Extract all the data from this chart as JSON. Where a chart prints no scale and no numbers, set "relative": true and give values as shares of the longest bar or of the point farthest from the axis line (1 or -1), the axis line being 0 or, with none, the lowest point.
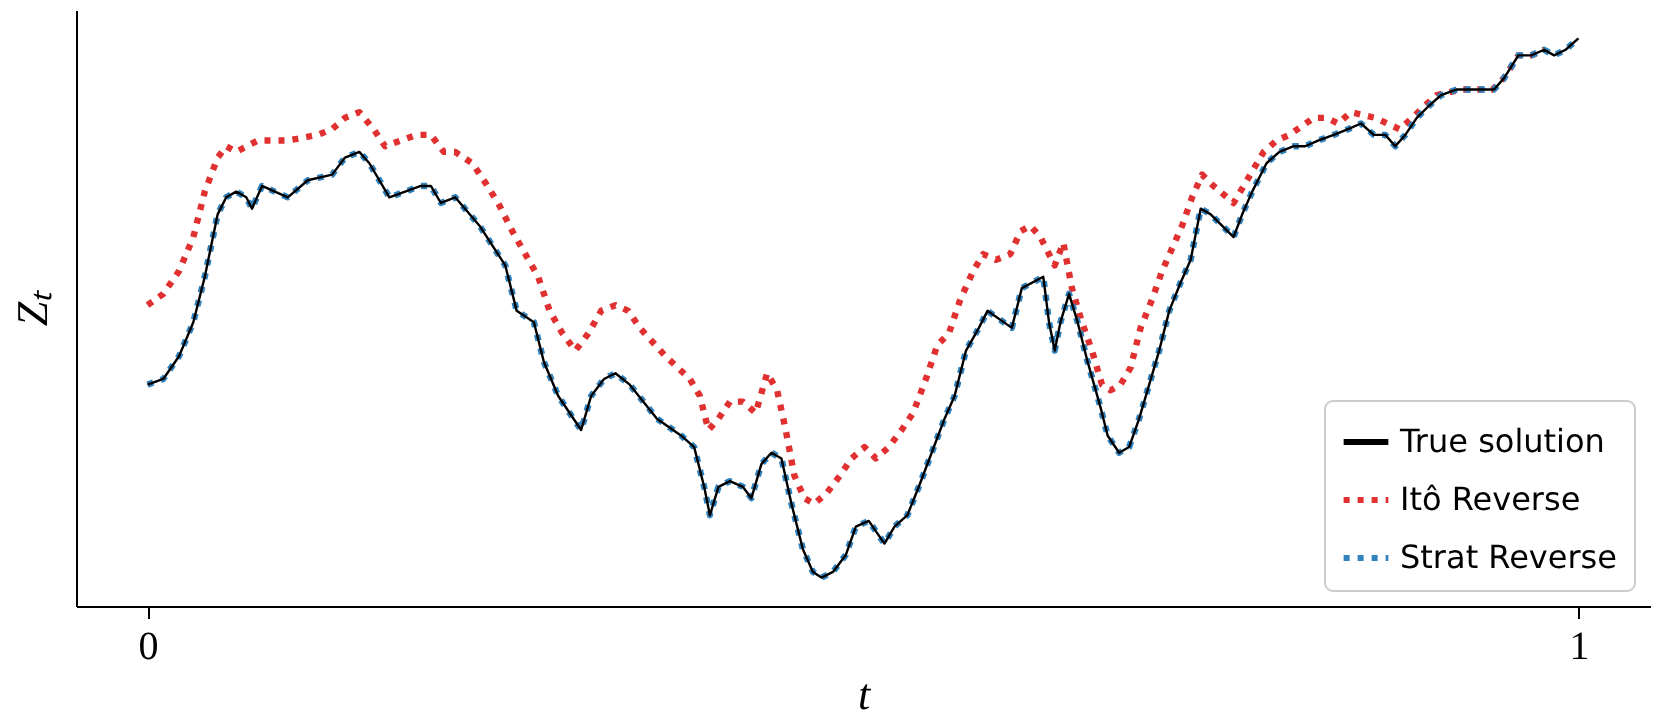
{
  "chart_data": {
    "type": "line",
    "xlabel": "t",
    "ylabel": "Zₜ",
    "xlim": [
      -0.05,
      1.05
    ],
    "xticks": [
      {
        "value": 0,
        "label": "0"
      },
      {
        "value": 1,
        "label": "1"
      }
    ],
    "relative": true,
    "tick_labels": "x",
    "legend": "bottom right",
    "series": [
      {
        "name": "True solution",
        "color": "#000000",
        "line_style": "solid",
        "x": [
          0,
          0.011,
          0.022,
          0.032,
          0.04,
          0.049,
          0.055,
          0.062,
          0.069,
          0.073,
          0.08,
          0.098,
          0.112,
          0.129,
          0.138,
          0.148,
          0.155,
          0.169,
          0.191,
          0.198,
          0.205,
          0.215,
          0.232,
          0.25,
          0.258,
          0.27,
          0.277,
          0.287,
          0.303,
          0.31,
          0.319,
          0.327,
          0.337,
          0.356,
          0.373,
          0.382,
          0.389,
          0.393,
          0.399,
          0.407,
          0.416,
          0.422,
          0.429,
          0.436,
          0.443,
          0.45,
          0.458,
          0.465,
          0.471,
          0.479,
          0.488,
          0.495,
          0.504,
          0.515,
          0.522,
          0.531,
          0.539,
          0.548,
          0.557,
          0.564,
          0.572,
          0.581,
          0.587,
          0.604,
          0.611,
          0.626,
          0.63,
          0.634,
          0.638,
          0.644,
          0.65,
          0.657,
          0.666,
          0.671,
          0.679,
          0.686,
          0.693,
          0.7,
          0.707,
          0.714,
          0.722,
          0.729,
          0.736,
          0.743,
          0.759,
          0.765,
          0.772,
          0.782,
          0.791,
          0.801,
          0.809,
          0.818,
          0.829,
          0.839,
          0.848,
          0.857,
          0.865,
          0.872,
          0.879,
          0.887,
          0.895,
          0.904,
          0.915,
          0.941,
          0.948,
          0.958,
          0.967,
          0.976,
          0.983,
          0.991,
          1
        ],
        "values": [
          0.39,
          0.4,
          0.44,
          0.5,
          0.58,
          0.69,
          0.72,
          0.73,
          0.72,
          0.7,
          0.74,
          0.72,
          0.75,
          0.76,
          0.79,
          0.8,
          0.78,
          0.72,
          0.74,
          0.74,
          0.71,
          0.72,
          0.67,
          0.6,
          0.52,
          0.5,
          0.43,
          0.37,
          0.31,
          0.37,
          0.4,
          0.41,
          0.39,
          0.33,
          0.3,
          0.28,
          0.21,
          0.16,
          0.21,
          0.22,
          0.21,
          0.19,
          0.25,
          0.27,
          0.26,
          0.18,
          0.1,
          0.06,
          0.05,
          0.06,
          0.09,
          0.14,
          0.15,
          0.11,
          0.14,
          0.16,
          0.21,
          0.27,
          0.33,
          0.37,
          0.45,
          0.49,
          0.52,
          0.49,
          0.56,
          0.58,
          0.5,
          0.45,
          0.5,
          0.55,
          0.5,
          0.43,
          0.35,
          0.3,
          0.27,
          0.28,
          0.33,
          0.39,
          0.45,
          0.52,
          0.57,
          0.61,
          0.7,
          0.69,
          0.65,
          0.69,
          0.73,
          0.78,
          0.8,
          0.81,
          0.81,
          0.82,
          0.83,
          0.84,
          0.85,
          0.83,
          0.83,
          0.81,
          0.83,
          0.86,
          0.88,
          0.9,
          0.91,
          0.91,
          0.93,
          0.97,
          0.97,
          0.98,
          0.97,
          0.98,
          1.0
        ]
      },
      {
        "name": "Itô Reverse",
        "color": "#e03030",
        "line_style": "dotted",
        "x": [
          0,
          0.011,
          0.022,
          0.032,
          0.04,
          0.049,
          0.055,
          0.062,
          0.077,
          0.098,
          0.119,
          0.129,
          0.138,
          0.148,
          0.158,
          0.166,
          0.188,
          0.198,
          0.207,
          0.215,
          0.227,
          0.235,
          0.245,
          0.255,
          0.264,
          0.273,
          0.281,
          0.29,
          0.299,
          0.308,
          0.317,
          0.327,
          0.336,
          0.344,
          0.362,
          0.379,
          0.386,
          0.392,
          0.399,
          0.407,
          0.416,
          0.425,
          0.433,
          0.44,
          0.446,
          0.452,
          0.459,
          0.466,
          0.475,
          0.484,
          0.492,
          0.501,
          0.509,
          0.518,
          0.527,
          0.535,
          0.544,
          0.552,
          0.56,
          0.568,
          0.577,
          0.584,
          0.593,
          0.603,
          0.61,
          0.617,
          0.624,
          0.628,
          0.634,
          0.64,
          0.646,
          0.653,
          0.66,
          0.667,
          0.673,
          0.68,
          0.687,
          0.694,
          0.702,
          0.709,
          0.716,
          0.723,
          0.73,
          0.737,
          0.745,
          0.759,
          0.766,
          0.773,
          0.78,
          0.789,
          0.798,
          0.815,
          0.824,
          0.832,
          0.841,
          0.858,
          0.875,
          0.884,
          0.892,
          0.901,
          0.918,
          0.94,
          0.948,
          0.958,
          0.967,
          0.976
        ],
        "values": [
          0.53,
          0.55,
          0.59,
          0.65,
          0.73,
          0.79,
          0.81,
          0.8,
          0.82,
          0.82,
          0.83,
          0.84,
          0.86,
          0.87,
          0.84,
          0.81,
          0.83,
          0.83,
          0.8,
          0.8,
          0.78,
          0.75,
          0.71,
          0.66,
          0.62,
          0.58,
          0.52,
          0.48,
          0.45,
          0.48,
          0.52,
          0.53,
          0.52,
          0.49,
          0.44,
          0.4,
          0.37,
          0.31,
          0.33,
          0.36,
          0.36,
          0.34,
          0.41,
          0.38,
          0.31,
          0.23,
          0.19,
          0.18,
          0.2,
          0.23,
          0.26,
          0.28,
          0.26,
          0.28,
          0.31,
          0.34,
          0.4,
          0.46,
          0.48,
          0.54,
          0.59,
          0.62,
          0.61,
          0.62,
          0.66,
          0.67,
          0.65,
          0.63,
          0.6,
          0.64,
          0.56,
          0.5,
          0.45,
          0.39,
          0.38,
          0.39,
          0.42,
          0.49,
          0.54,
          0.59,
          0.63,
          0.67,
          0.72,
          0.76,
          0.74,
          0.71,
          0.74,
          0.77,
          0.8,
          0.82,
          0.83,
          0.86,
          0.86,
          0.85,
          0.87,
          0.86,
          0.84,
          0.86,
          0.88,
          0.9,
          0.91,
          0.91,
          0.93,
          0.97,
          0.97,
          0.98
        ]
      },
      {
        "name": "Strat Reverse",
        "color": "#3182bd",
        "line_style": "dotted",
        "x": [
          0,
          0.011,
          0.022,
          0.032,
          0.04,
          0.049,
          0.055,
          0.062,
          0.069,
          0.073,
          0.08,
          0.098,
          0.112,
          0.129,
          0.138,
          0.148,
          0.155,
          0.169,
          0.191,
          0.198,
          0.205,
          0.215,
          0.232,
          0.25,
          0.258,
          0.27,
          0.277,
          0.287,
          0.303,
          0.31,
          0.319,
          0.327,
          0.337,
          0.356,
          0.373,
          0.382,
          0.389,
          0.393,
          0.399,
          0.407,
          0.416,
          0.422,
          0.429,
          0.436,
          0.443,
          0.45,
          0.458,
          0.465,
          0.471,
          0.479,
          0.488,
          0.495,
          0.504,
          0.515,
          0.522,
          0.531,
          0.539,
          0.548,
          0.557,
          0.564,
          0.572,
          0.581,
          0.587,
          0.604,
          0.611,
          0.626,
          0.63,
          0.634,
          0.638,
          0.644,
          0.65,
          0.657,
          0.666,
          0.671,
          0.679,
          0.686,
          0.693,
          0.7,
          0.707,
          0.714,
          0.722,
          0.729,
          0.736,
          0.743,
          0.759,
          0.765,
          0.772,
          0.782,
          0.791,
          0.801,
          0.809,
          0.818,
          0.829,
          0.839,
          0.848,
          0.857,
          0.865,
          0.872,
          0.879,
          0.887,
          0.895,
          0.904,
          0.915,
          0.941,
          0.948,
          0.958,
          0.967,
          0.976,
          0.983,
          0.991,
          1
        ],
        "values": [
          0.39,
          0.4,
          0.44,
          0.5,
          0.58,
          0.69,
          0.72,
          0.73,
          0.72,
          0.7,
          0.74,
          0.72,
          0.75,
          0.76,
          0.79,
          0.8,
          0.78,
          0.72,
          0.74,
          0.74,
          0.71,
          0.72,
          0.67,
          0.6,
          0.52,
          0.5,
          0.43,
          0.37,
          0.31,
          0.37,
          0.4,
          0.41,
          0.39,
          0.33,
          0.3,
          0.28,
          0.21,
          0.16,
          0.21,
          0.22,
          0.21,
          0.19,
          0.25,
          0.27,
          0.26,
          0.18,
          0.1,
          0.06,
          0.05,
          0.06,
          0.09,
          0.14,
          0.15,
          0.11,
          0.14,
          0.16,
          0.21,
          0.27,
          0.33,
          0.37,
          0.45,
          0.49,
          0.52,
          0.49,
          0.56,
          0.58,
          0.5,
          0.45,
          0.5,
          0.55,
          0.5,
          0.43,
          0.35,
          0.3,
          0.27,
          0.28,
          0.33,
          0.39,
          0.45,
          0.52,
          0.57,
          0.61,
          0.7,
          0.69,
          0.65,
          0.69,
          0.73,
          0.78,
          0.8,
          0.81,
          0.81,
          0.82,
          0.83,
          0.84,
          0.85,
          0.83,
          0.83,
          0.81,
          0.83,
          0.86,
          0.88,
          0.9,
          0.91,
          0.91,
          0.93,
          0.97,
          0.97,
          0.98,
          0.97,
          0.98,
          1.0
        ]
      }
    ]
  }
}
